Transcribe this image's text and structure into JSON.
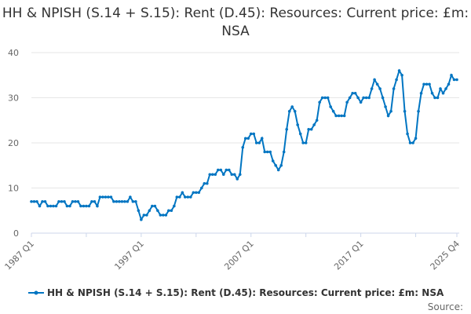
{
  "chart_data": {
    "type": "line",
    "title": "HH & NPISH (S.14 + S.15): Rent (D.45): Resources: Current price: £m: NSA",
    "xlabel": "",
    "ylabel": "",
    "ylim": [
      0,
      40
    ],
    "yticks": [
      "0",
      "10",
      "20",
      "30",
      "40"
    ],
    "xtick_labels": [
      "1987 Q1",
      "1997 Q1",
      "2007 Q1",
      "2017 Q1",
      "2025 Q4"
    ],
    "x_start": "1987 Q1",
    "x_end": "2025 Q4",
    "grid": true,
    "legend_position": "bottom",
    "color": "#0075c2",
    "series": [
      {
        "name": "HH & NPISH (S.14 + S.15): Rent (D.45): Resources: Current price: £m: NSA",
        "values": [
          7,
          7,
          7,
          6,
          7,
          7,
          6,
          6,
          6,
          6,
          7,
          7,
          7,
          6,
          6,
          7,
          7,
          7,
          6,
          6,
          6,
          6,
          7,
          7,
          6,
          8,
          8,
          8,
          8,
          8,
          7,
          7,
          7,
          7,
          7,
          7,
          8,
          7,
          7,
          5,
          3,
          4,
          4,
          5,
          6,
          6,
          5,
          4,
          4,
          4,
          5,
          5,
          6,
          8,
          8,
          9,
          8,
          8,
          8,
          9,
          9,
          9,
          10,
          11,
          11,
          13,
          13,
          13,
          14,
          14,
          13,
          14,
          14,
          13,
          13,
          12,
          13,
          19,
          21,
          21,
          22,
          22,
          20,
          20,
          21,
          18,
          18,
          18,
          16,
          15,
          14,
          15,
          18,
          23,
          27,
          28,
          27,
          24,
          22,
          20,
          20,
          23,
          23,
          24,
          25,
          29,
          30,
          30,
          30,
          28,
          27,
          26,
          26,
          26,
          26,
          29,
          30,
          31,
          31,
          30,
          29,
          30,
          30,
          30,
          32,
          34,
          33,
          32,
          30,
          28,
          26,
          27,
          32,
          34,
          36,
          35,
          27,
          22,
          20,
          20,
          21,
          27,
          31,
          33,
          33,
          33,
          31,
          30,
          30,
          32,
          31,
          32,
          33,
          35,
          34,
          34
        ]
      }
    ]
  },
  "source_label": "Source:"
}
